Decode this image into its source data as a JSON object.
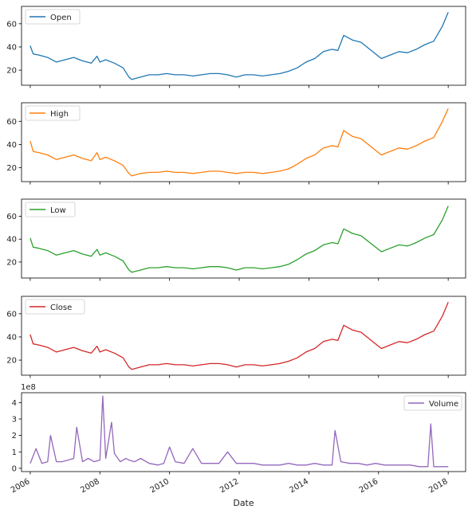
{
  "chart_data": {
    "type": "line",
    "xlabel": "Date",
    "x_ticks": [
      "2006",
      "2008",
      "2010",
      "2012",
      "2014",
      "2016",
      "2018"
    ],
    "x_range": [
      "2005-10",
      "2018-07"
    ],
    "grid": false,
    "panels": [
      {
        "name": "Open",
        "color": "#1f77b4",
        "legend_loc": "upper-left",
        "ylim": [
          7,
          75
        ],
        "yticks": [
          20,
          40,
          60
        ],
        "series": [
          {
            "name": "Open",
            "x": [
              "2006-01",
              "2006-02",
              "2006-04",
              "2006-07",
              "2006-10",
              "2007-01",
              "2007-04",
              "2007-07",
              "2007-10",
              "2007-12",
              "2008-01",
              "2008-03",
              "2008-06",
              "2008-09",
              "2008-11",
              "2008-12",
              "2009-03",
              "2009-06",
              "2009-09",
              "2009-12",
              "2010-03",
              "2010-06",
              "2010-09",
              "2010-12",
              "2011-03",
              "2011-06",
              "2011-09",
              "2011-12",
              "2012-03",
              "2012-06",
              "2012-09",
              "2012-12",
              "2013-03",
              "2013-06",
              "2013-09",
              "2013-12",
              "2014-03",
              "2014-06",
              "2014-09",
              "2014-11",
              "2015-01",
              "2015-04",
              "2015-07",
              "2015-09",
              "2015-12",
              "2016-02",
              "2016-05",
              "2016-08",
              "2016-11",
              "2017-02",
              "2017-05",
              "2017-08",
              "2017-11",
              "2018-01"
            ],
            "y": [
              41,
              34,
              33,
              31,
              27,
              29,
              31,
              28,
              26,
              32,
              27,
              29,
              26,
              22,
              14,
              12,
              14,
              16,
              16,
              17,
              16,
              16,
              15,
              16,
              17,
              17,
              16,
              14,
              16,
              16,
              15,
              16,
              17,
              19,
              22,
              27,
              30,
              36,
              38,
              37,
              50,
              46,
              44,
              40,
              34,
              30,
              33,
              36,
              35,
              38,
              42,
              45,
              58,
              70
            ]
          }
        ]
      },
      {
        "name": "High",
        "color": "#ff7f0e",
        "legend_loc": "upper-left",
        "ylim": [
          8,
          76
        ],
        "yticks": [
          20,
          40,
          60
        ],
        "series": [
          {
            "name": "High",
            "x": [
              "2006-01",
              "2006-02",
              "2006-04",
              "2006-07",
              "2006-10",
              "2007-01",
              "2007-04",
              "2007-07",
              "2007-10",
              "2007-12",
              "2008-01",
              "2008-03",
              "2008-06",
              "2008-09",
              "2008-11",
              "2008-12",
              "2009-03",
              "2009-06",
              "2009-09",
              "2009-12",
              "2010-03",
              "2010-06",
              "2010-09",
              "2010-12",
              "2011-03",
              "2011-06",
              "2011-09",
              "2011-12",
              "2012-03",
              "2012-06",
              "2012-09",
              "2012-12",
              "2013-03",
              "2013-06",
              "2013-09",
              "2013-12",
              "2014-03",
              "2014-06",
              "2014-09",
              "2014-11",
              "2015-01",
              "2015-04",
              "2015-07",
              "2015-09",
              "2015-12",
              "2016-02",
              "2016-05",
              "2016-08",
              "2016-11",
              "2017-02",
              "2017-05",
              "2017-08",
              "2017-11",
              "2018-01"
            ],
            "y": [
              43,
              34,
              33,
              31,
              27,
              29,
              31,
              28,
              26,
              33,
              27,
              29,
              26,
              22,
              15,
              13,
              15,
              16,
              16,
              17,
              16,
              16,
              15,
              16,
              17,
              17,
              16,
              15,
              16,
              16,
              15,
              16,
              17,
              19,
              23,
              28,
              31,
              37,
              39,
              38,
              52,
              47,
              45,
              41,
              35,
              31,
              34,
              37,
              36,
              39,
              43,
              46,
              60,
              71
            ]
          }
        ]
      },
      {
        "name": "Low",
        "color": "#2ca02c",
        "legend_loc": "upper-left",
        "ylim": [
          6,
          75
        ],
        "yticks": [
          20,
          40,
          60
        ],
        "series": [
          {
            "name": "Low",
            "x": [
              "2006-01",
              "2006-02",
              "2006-04",
              "2006-07",
              "2006-10",
              "2007-01",
              "2007-04",
              "2007-07",
              "2007-10",
              "2007-12",
              "2008-01",
              "2008-03",
              "2008-06",
              "2008-09",
              "2008-11",
              "2008-12",
              "2009-03",
              "2009-06",
              "2009-09",
              "2009-12",
              "2010-03",
              "2010-06",
              "2010-09",
              "2010-12",
              "2011-03",
              "2011-06",
              "2011-09",
              "2011-12",
              "2012-03",
              "2012-06",
              "2012-09",
              "2012-12",
              "2013-03",
              "2013-06",
              "2013-09",
              "2013-12",
              "2014-03",
              "2014-06",
              "2014-09",
              "2014-11",
              "2015-01",
              "2015-04",
              "2015-07",
              "2015-09",
              "2015-12",
              "2016-02",
              "2016-05",
              "2016-08",
              "2016-11",
              "2017-02",
              "2017-05",
              "2017-08",
              "2017-11",
              "2018-01"
            ],
            "y": [
              41,
              33,
              32,
              30,
              26,
              28,
              30,
              27,
              25,
              31,
              26,
              28,
              25,
              21,
              13,
              11,
              13,
              15,
              15,
              16,
              15,
              15,
              14,
              15,
              16,
              16,
              15,
              13,
              15,
              15,
              14,
              15,
              16,
              18,
              22,
              27,
              30,
              35,
              37,
              36,
              49,
              45,
              43,
              39,
              33,
              29,
              32,
              35,
              34,
              37,
              41,
              44,
              57,
              69
            ]
          }
        ]
      },
      {
        "name": "Close",
        "color": "#d62728",
        "legend_loc": "upper-left",
        "ylim": [
          7,
          75
        ],
        "yticks": [
          20,
          40,
          60
        ],
        "series": [
          {
            "name": "Close",
            "x": [
              "2006-01",
              "2006-02",
              "2006-04",
              "2006-07",
              "2006-10",
              "2007-01",
              "2007-04",
              "2007-07",
              "2007-10",
              "2007-12",
              "2008-01",
              "2008-03",
              "2008-06",
              "2008-09",
              "2008-11",
              "2008-12",
              "2009-03",
              "2009-06",
              "2009-09",
              "2009-12",
              "2010-03",
              "2010-06",
              "2010-09",
              "2010-12",
              "2011-03",
              "2011-06",
              "2011-09",
              "2011-12",
              "2012-03",
              "2012-06",
              "2012-09",
              "2012-12",
              "2013-03",
              "2013-06",
              "2013-09",
              "2013-12",
              "2014-03",
              "2014-06",
              "2014-09",
              "2014-11",
              "2015-01",
              "2015-04",
              "2015-07",
              "2015-09",
              "2015-12",
              "2016-02",
              "2016-05",
              "2016-08",
              "2016-11",
              "2017-02",
              "2017-05",
              "2017-08",
              "2017-11",
              "2018-01"
            ],
            "y": [
              42,
              34,
              33,
              31,
              27,
              29,
              31,
              28,
              26,
              32,
              27,
              29,
              26,
              22,
              14,
              12,
              14,
              16,
              16,
              17,
              16,
              16,
              15,
              16,
              17,
              17,
              16,
              14,
              16,
              16,
              15,
              16,
              17,
              19,
              22,
              27,
              30,
              36,
              38,
              37,
              50,
              46,
              44,
              40,
              34,
              30,
              33,
              36,
              35,
              38,
              42,
              45,
              58,
              70
            ]
          }
        ]
      },
      {
        "name": "Volume",
        "color": "#9467bd",
        "legend_loc": "upper-right",
        "ylim": [
          -0.2,
          4.6
        ],
        "yticks": [
          0,
          1,
          2,
          3,
          4
        ],
        "y_multiplier": "1e8",
        "series": [
          {
            "name": "Volume",
            "x": [
              "2006-01",
              "2006-03",
              "2006-05",
              "2006-07",
              "2006-08",
              "2006-10",
              "2006-12",
              "2007-02",
              "2007-04",
              "2007-05",
              "2007-07",
              "2007-09",
              "2007-11",
              "2008-01",
              "2008-02",
              "2008-03",
              "2008-05",
              "2008-06",
              "2008-08",
              "2008-10",
              "2008-11",
              "2009-01",
              "2009-03",
              "2009-06",
              "2009-09",
              "2009-11",
              "2010-01",
              "2010-03",
              "2010-06",
              "2010-09",
              "2010-12",
              "2011-03",
              "2011-06",
              "2011-09",
              "2011-12",
              "2012-03",
              "2012-06",
              "2012-09",
              "2012-12",
              "2013-03",
              "2013-06",
              "2013-09",
              "2013-12",
              "2014-03",
              "2014-06",
              "2014-09",
              "2014-10",
              "2014-12",
              "2015-03",
              "2015-06",
              "2015-09",
              "2015-12",
              "2016-03",
              "2016-06",
              "2016-09",
              "2016-12",
              "2017-03",
              "2017-06",
              "2017-07",
              "2017-08",
              "2017-10",
              "2017-12",
              "2018-01"
            ],
            "y": [
              0.3,
              1.2,
              0.3,
              0.4,
              2.0,
              0.4,
              0.4,
              0.5,
              0.6,
              2.5,
              0.4,
              0.6,
              0.4,
              0.5,
              4.4,
              0.6,
              2.8,
              0.9,
              0.4,
              0.6,
              0.5,
              0.4,
              0.6,
              0.3,
              0.2,
              0.3,
              1.3,
              0.4,
              0.3,
              1.2,
              0.3,
              0.3,
              0.3,
              1.0,
              0.3,
              0.3,
              0.3,
              0.2,
              0.2,
              0.2,
              0.3,
              0.2,
              0.2,
              0.3,
              0.2,
              0.2,
              2.3,
              0.4,
              0.3,
              0.3,
              0.2,
              0.3,
              0.2,
              0.2,
              0.2,
              0.2,
              0.1,
              0.1,
              2.7,
              0.1,
              0.1,
              0.1,
              0.1
            ]
          }
        ]
      }
    ]
  }
}
